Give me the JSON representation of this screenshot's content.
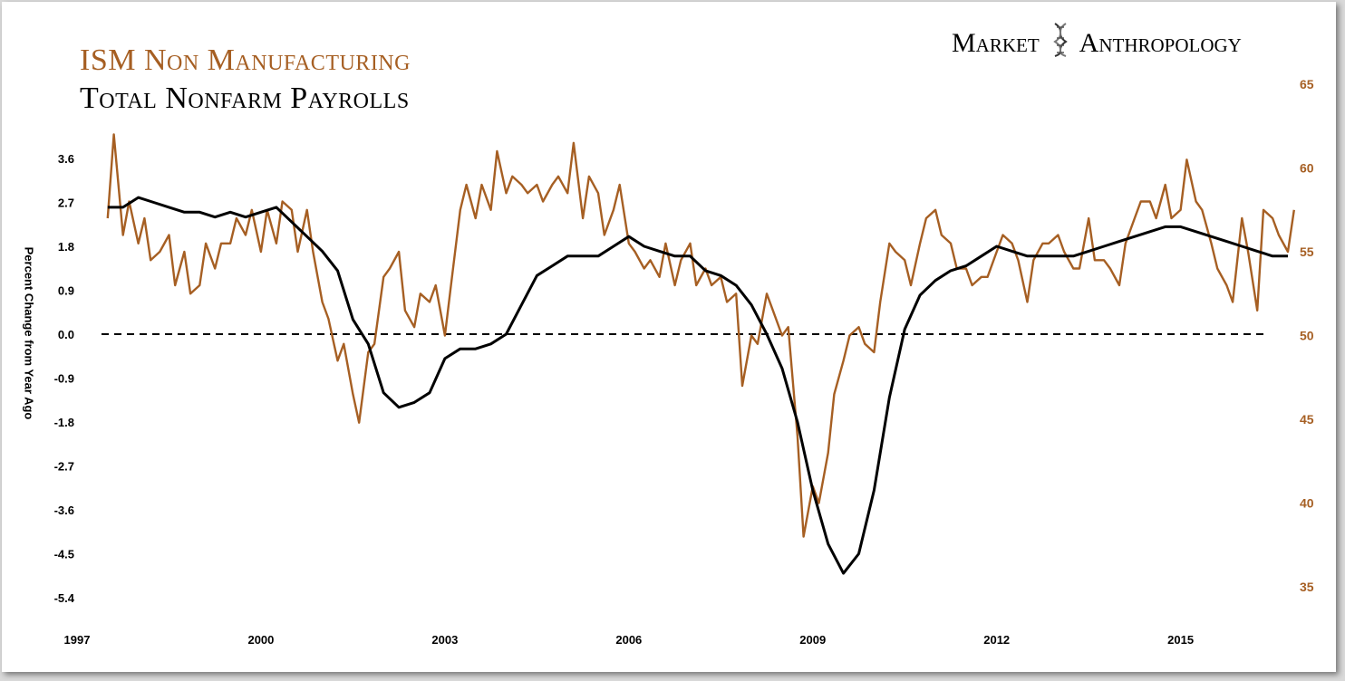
{
  "title_line1": "ISM Non Manufacturing",
  "title_line2": "Total Nonfarm Payrolls",
  "brand": {
    "left": "Market",
    "right": "Anthropology",
    "icon": "dna-helix-icon"
  },
  "colors": {
    "ism": "#a65f23",
    "payrolls": "#000000",
    "zero_line": "#000000"
  },
  "chart_data": {
    "type": "line",
    "title": "ISM Non Manufacturing / Total Nonfarm Payrolls",
    "ylabel": "Percent Change from Year Ago",
    "ylabel_right": "",
    "x_ticks": [
      "1997",
      "2000",
      "2003",
      "2006",
      "2009",
      "2012",
      "2015"
    ],
    "y_left_ticks": [
      "3.6",
      "2.7",
      "1.8",
      "0.9",
      "0.0",
      "-0.9",
      "-1.8",
      "-2.7",
      "-3.6",
      "-4.5",
      "-5.4"
    ],
    "y_right_ticks": [
      "65",
      "60",
      "55",
      "50",
      "45",
      "40",
      "35"
    ],
    "xlim": [
      1997,
      2017.4
    ],
    "ylim_left": [
      -5.4,
      3.6
    ],
    "ylim_right": [
      35,
      65
    ],
    "reference_line": {
      "y": 0.0,
      "style": "dashed"
    },
    "legend": "none (series names printed as title lines)",
    "series": [
      {
        "name": "ISM Non Manufacturing",
        "axis": "right",
        "x": [
          1997.5,
          1997.6,
          1997.75,
          1997.85,
          1998.0,
          1998.1,
          1998.2,
          1998.35,
          1998.5,
          1998.6,
          1998.75,
          1998.85,
          1999.0,
          1999.1,
          1999.25,
          1999.35,
          1999.5,
          1999.6,
          1999.75,
          1999.85,
          2000.0,
          2000.1,
          2000.25,
          2000.35,
          2000.5,
          2000.6,
          2000.75,
          2000.85,
          2001.0,
          2001.1,
          2001.25,
          2001.35,
          2001.5,
          2001.6,
          2001.75,
          2001.85,
          2002.0,
          2002.1,
          2002.25,
          2002.35,
          2002.5,
          2002.6,
          2002.75,
          2002.85,
          2003.0,
          2003.1,
          2003.25,
          2003.35,
          2003.5,
          2003.6,
          2003.75,
          2003.85,
          2004.0,
          2004.1,
          2004.25,
          2004.35,
          2004.5,
          2004.6,
          2004.75,
          2004.85,
          2005.0,
          2005.1,
          2005.25,
          2005.35,
          2005.5,
          2005.6,
          2005.75,
          2005.85,
          2006.0,
          2006.1,
          2006.25,
          2006.35,
          2006.5,
          2006.6,
          2006.75,
          2006.85,
          2007.0,
          2007.1,
          2007.25,
          2007.35,
          2007.5,
          2007.6,
          2007.75,
          2007.85,
          2008.0,
          2008.1,
          2008.25,
          2008.35,
          2008.5,
          2008.6,
          2008.75,
          2008.85,
          2009.0,
          2009.1,
          2009.25,
          2009.35,
          2009.5,
          2009.6,
          2009.75,
          2009.85,
          2010.0,
          2010.1,
          2010.25,
          2010.35,
          2010.5,
          2010.6,
          2010.75,
          2010.85,
          2011.0,
          2011.1,
          2011.25,
          2011.35,
          2011.5,
          2011.6,
          2011.75,
          2011.85,
          2012.0,
          2012.1,
          2012.25,
          2012.35,
          2012.5,
          2012.6,
          2012.75,
          2012.85,
          2013.0,
          2013.1,
          2013.25,
          2013.35,
          2013.5,
          2013.6,
          2013.75,
          2013.85,
          2014.0,
          2014.1,
          2014.25,
          2014.35,
          2014.5,
          2014.6,
          2014.75,
          2014.85,
          2015.0,
          2015.1,
          2015.25,
          2015.35,
          2015.5,
          2015.6,
          2015.75,
          2015.85,
          2016.0,
          2016.1,
          2016.25,
          2016.35,
          2016.5,
          2016.6,
          2016.75,
          2016.85
        ],
        "values": [
          57.0,
          62.0,
          56.0,
          58.0,
          55.5,
          57.0,
          54.5,
          55.0,
          56.0,
          53.0,
          55.0,
          52.5,
          53.0,
          55.5,
          54.0,
          55.5,
          55.5,
          57.0,
          56.0,
          57.5,
          55.0,
          57.5,
          55.5,
          58.0,
          57.5,
          55.0,
          57.5,
          55.0,
          52.0,
          51.0,
          48.5,
          49.5,
          46.5,
          44.8,
          49.0,
          49.5,
          53.5,
          54.0,
          55.0,
          51.5,
          50.5,
          52.5,
          52.0,
          53.0,
          50.0,
          53.0,
          57.5,
          59.0,
          57.0,
          59.0,
          57.5,
          61.0,
          58.5,
          59.5,
          59.0,
          58.5,
          59.0,
          58.0,
          59.0,
          59.5,
          58.5,
          61.5,
          57.0,
          59.5,
          58.5,
          56.0,
          57.5,
          59.0,
          55.5,
          55.0,
          54.0,
          54.5,
          53.5,
          55.5,
          53.0,
          54.5,
          55.5,
          53.0,
          54.0,
          53.0,
          53.5,
          52.0,
          52.5,
          47.0,
          50.0,
          49.5,
          52.5,
          51.5,
          50.0,
          50.5,
          44.0,
          38.0,
          41.0,
          40.0,
          43.0,
          46.5,
          48.5,
          50.0,
          50.5,
          49.5,
          49.0,
          52.0,
          55.5,
          55.0,
          54.5,
          53.0,
          55.5,
          57.0,
          57.5,
          56.0,
          55.5,
          54.0,
          54.0,
          53.0,
          53.5,
          53.5,
          55.0,
          56.0,
          55.5,
          54.5,
          52.0,
          54.5,
          55.5,
          55.5,
          56.0,
          55.0,
          54.0,
          54.0,
          57.0,
          54.5,
          54.5,
          54.0,
          53.0,
          55.5,
          57.0,
          58.0,
          58.0,
          57.0,
          59.0,
          57.0,
          57.5,
          60.5,
          58.0,
          57.5,
          55.5,
          54.0,
          53.0,
          52.0,
          57.0,
          55.0,
          51.5,
          57.5,
          57.0,
          56.0,
          55.0,
          57.5
        ],
        "values_note": "approx. monthly readings (right axis 35-65)"
      },
      {
        "name": "Total Nonfarm Payrolls",
        "axis": "left",
        "x": [
          1997.5,
          1997.75,
          1998.0,
          1998.25,
          1998.5,
          1998.75,
          1999.0,
          1999.25,
          1999.5,
          1999.75,
          2000.0,
          2000.25,
          2000.5,
          2000.75,
          2001.0,
          2001.25,
          2001.5,
          2001.75,
          2002.0,
          2002.25,
          2002.5,
          2002.75,
          2003.0,
          2003.25,
          2003.5,
          2003.75,
          2004.0,
          2004.25,
          2004.5,
          2004.75,
          2005.0,
          2005.25,
          2005.5,
          2005.75,
          2006.0,
          2006.25,
          2006.5,
          2006.75,
          2007.0,
          2007.25,
          2007.5,
          2007.75,
          2008.0,
          2008.25,
          2008.5,
          2008.75,
          2009.0,
          2009.25,
          2009.5,
          2009.75,
          2010.0,
          2010.25,
          2010.5,
          2010.75,
          2011.0,
          2011.25,
          2011.5,
          2011.75,
          2012.0,
          2012.25,
          2012.5,
          2012.75,
          2013.0,
          2013.25,
          2013.5,
          2013.75,
          2014.0,
          2014.25,
          2014.5,
          2014.75,
          2015.0,
          2015.25,
          2015.5,
          2015.75,
          2016.0,
          2016.25,
          2016.5,
          2016.75
        ],
        "values": [
          2.6,
          2.6,
          2.8,
          2.7,
          2.6,
          2.5,
          2.5,
          2.4,
          2.5,
          2.4,
          2.5,
          2.6,
          2.3,
          2.0,
          1.7,
          1.3,
          0.3,
          -0.2,
          -1.2,
          -1.5,
          -1.4,
          -1.2,
          -0.5,
          -0.3,
          -0.3,
          -0.2,
          0.0,
          0.6,
          1.2,
          1.4,
          1.6,
          1.6,
          1.6,
          1.8,
          2.0,
          1.8,
          1.7,
          1.6,
          1.6,
          1.3,
          1.2,
          1.0,
          0.6,
          0.0,
          -0.7,
          -1.8,
          -3.2,
          -4.3,
          -4.9,
          -4.5,
          -3.2,
          -1.3,
          0.1,
          0.8,
          1.1,
          1.3,
          1.4,
          1.6,
          1.8,
          1.7,
          1.6,
          1.6,
          1.6,
          1.6,
          1.7,
          1.8,
          1.9,
          2.0,
          2.1,
          2.2,
          2.2,
          2.1,
          2.0,
          1.9,
          1.8,
          1.7,
          1.6,
          1.6
        ],
        "values_note": "approx. percent change from year ago (left axis -5.4 to 3.6)"
      }
    ]
  }
}
